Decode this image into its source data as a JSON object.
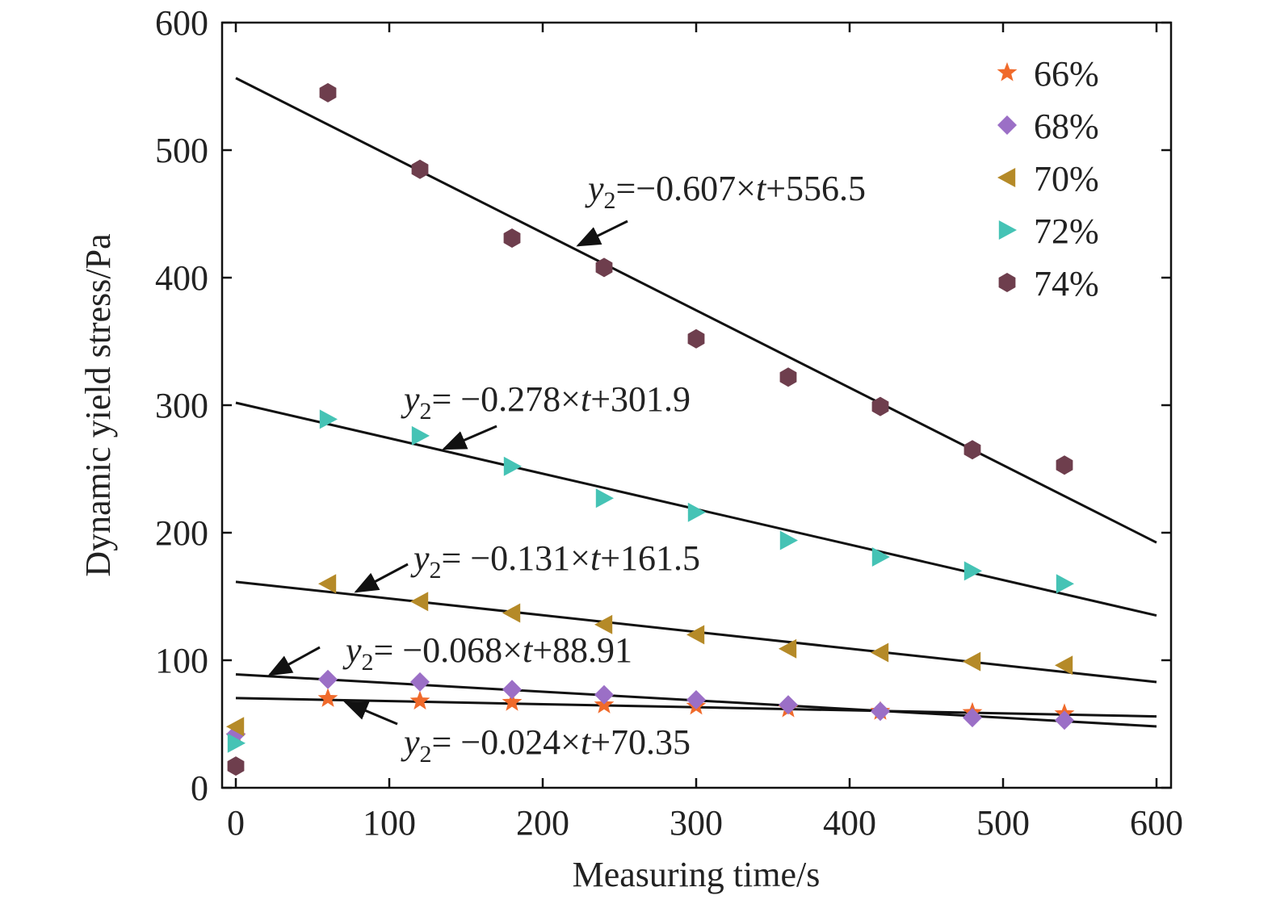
{
  "chart_data": {
    "type": "scatter",
    "xlabel": "Measuring time/s",
    "ylabel": "Dynamic yield stress/Pa",
    "xlim": [
      -10,
      610
    ],
    "ylim": [
      0,
      600
    ],
    "xticks": [
      "0",
      "100",
      "200",
      "300",
      "400",
      "500",
      "600"
    ],
    "yticks": [
      "0",
      "100",
      "200",
      "300",
      "400",
      "500",
      "600"
    ],
    "grid": false,
    "legend_position": "top-right",
    "series": [
      {
        "name": "66%",
        "marker": "star",
        "color": "#f06a2b",
        "x": [
          0,
          60,
          120,
          180,
          240,
          300,
          360,
          420,
          480,
          540
        ],
        "y": [
          40,
          70,
          68,
          67,
          65,
          64,
          62,
          60,
          59,
          58
        ]
      },
      {
        "name": "68%",
        "marker": "diamond",
        "color": "#9b6fc6",
        "x": [
          0,
          60,
          120,
          180,
          240,
          300,
          360,
          420,
          480,
          540
        ],
        "y": [
          42,
          85,
          83,
          77,
          73,
          69,
          65,
          60,
          55,
          53
        ]
      },
      {
        "name": "70%",
        "marker": "triangle-left",
        "color": "#b58a28",
        "x": [
          0,
          60,
          120,
          180,
          240,
          300,
          360,
          420,
          480,
          540
        ],
        "y": [
          48,
          160,
          146,
          137,
          128,
          120,
          109,
          106,
          99,
          96
        ]
      },
      {
        "name": "72%",
        "marker": "triangle-right",
        "color": "#45c3b5",
        "x": [
          0,
          60,
          120,
          180,
          240,
          300,
          360,
          420,
          480,
          540
        ],
        "y": [
          35,
          289,
          276,
          252,
          227,
          216,
          194,
          181,
          170,
          160
        ]
      },
      {
        "name": "74%",
        "marker": "hexagon",
        "color": "#6e3e4d",
        "x": [
          0,
          60,
          120,
          180,
          240,
          300,
          360,
          420,
          480,
          540
        ],
        "y": [
          17,
          545,
          485,
          431,
          408,
          352,
          322,
          299,
          265,
          253
        ]
      }
    ],
    "fit_lines": [
      {
        "slope": -0.607,
        "intercept": 556.5,
        "x_range": [
          0,
          600
        ]
      },
      {
        "slope": -0.278,
        "intercept": 301.9,
        "x_range": [
          0,
          600
        ]
      },
      {
        "slope": -0.131,
        "intercept": 161.5,
        "x_range": [
          0,
          600
        ]
      },
      {
        "slope": -0.068,
        "intercept": 88.91,
        "x_range": [
          0,
          600
        ]
      },
      {
        "slope": -0.024,
        "intercept": 70.35,
        "x_range": [
          0,
          600
        ]
      }
    ],
    "annotations": [
      {
        "var": "y",
        "sub": "2",
        "rest": "=−0.607×",
        "t": "t",
        "tail": "+556.5"
      },
      {
        "var": "y",
        "sub": "2",
        "rest": "= −0.278×",
        "t": "t",
        "tail": "+301.9"
      },
      {
        "var": "y",
        "sub": "2",
        "rest": "= −0.131×",
        "t": "t",
        "tail": "+161.5"
      },
      {
        "var": "y",
        "sub": "2",
        "rest": "= −0.068×",
        "t": "t",
        "tail": "+88.91"
      },
      {
        "var": "y",
        "sub": "2",
        "rest": "= −0.024×",
        "t": "t",
        "tail": "+70.35"
      }
    ]
  }
}
